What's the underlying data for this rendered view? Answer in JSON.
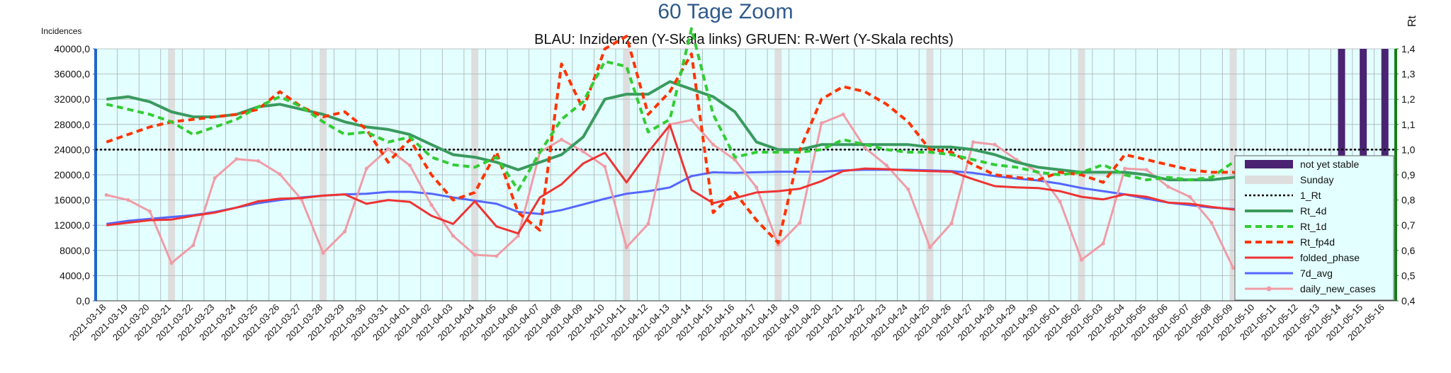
{
  "chart_data": {
    "type": "line",
    "title": "60 Tage Zoom",
    "subtitle": "BLAU: Inzidenzen (Y-Skala links)     GRUEN: R-Wert (Y-Skala rechts)",
    "ylabel_left": "Incidences",
    "ylabel_right": "Rt",
    "ylim_left": [
      0,
      40000
    ],
    "ylim_right": [
      0.4,
      1.4
    ],
    "yticks_left": [
      "0,0",
      "4000,0",
      "8000,0",
      "12000,0",
      "16000,0",
      "20000,0",
      "24000,0",
      "28000,0",
      "32000,0",
      "36000,0",
      "40000,0"
    ],
    "yticks_right": [
      "0,4",
      "0,5",
      "0,6",
      "0,7",
      "0,8",
      "0,9",
      "1,0",
      "1,1",
      "1,2",
      "1,3",
      "1,4"
    ],
    "grid": true,
    "legend_position": "bottom-right",
    "background_color": "#e3ffff",
    "x": [
      "2021-03-18",
      "2021-03-19",
      "2021-03-20",
      "2021-03-21",
      "2021-03-22",
      "2021-03-23",
      "2021-03-24",
      "2021-03-25",
      "2021-03-26",
      "2021-03-27",
      "2021-03-28",
      "2021-03-29",
      "2021-03-30",
      "2021-03-31",
      "2021-04-01",
      "2021-04-02",
      "2021-04-03",
      "2021-04-04",
      "2021-04-05",
      "2021-04-06",
      "2021-04-07",
      "2021-04-08",
      "2021-04-09",
      "2021-04-10",
      "2021-04-11",
      "2021-04-12",
      "2021-04-13",
      "2021-04-14",
      "2021-04-15",
      "2021-04-16",
      "2021-04-17",
      "2021-04-18",
      "2021-04-19",
      "2021-04-20",
      "2021-04-21",
      "2021-04-22",
      "2021-04-23",
      "2021-04-24",
      "2021-04-25",
      "2021-04-26",
      "2021-04-27",
      "2021-04-28",
      "2021-04-29",
      "2021-04-30",
      "2021-05-01",
      "2021-05-02",
      "2021-05-03",
      "2021-05-04",
      "2021-05-05",
      "2021-05-06",
      "2021-05-07",
      "2021-05-08",
      "2021-05-09",
      "2021-05-10",
      "2021-05-11",
      "2021-05-12",
      "2021-05-13",
      "2021-05-14",
      "2021-05-15",
      "2021-05-16"
    ],
    "sundays": [
      "2021-03-21",
      "2021-03-28",
      "2021-04-04",
      "2021-04-11",
      "2021-04-18",
      "2021-04-25",
      "2021-05-02",
      "2021-05-09"
    ],
    "not_yet_stable": [
      "2021-05-14",
      "2021-05-15",
      "2021-05-16"
    ],
    "series": [
      {
        "name": "not yet stable",
        "kind": "bars",
        "color": "#4b2373"
      },
      {
        "name": "Sunday",
        "kind": "bars",
        "color": "#dedede"
      },
      {
        "name": "1_Rt",
        "kind": "line",
        "axis": "right",
        "color": "#000000",
        "dash": "dotted",
        "constant": 1.0
      },
      {
        "name": "Rt_4d",
        "kind": "line",
        "axis": "right",
        "color": "#3a9a5e",
        "dash": "solid",
        "values": [
          1.2,
          1.21,
          1.19,
          1.15,
          1.13,
          1.13,
          1.14,
          1.17,
          1.18,
          1.16,
          1.14,
          1.11,
          1.09,
          1.08,
          1.06,
          1.02,
          0.98,
          0.97,
          0.95,
          0.92,
          0.95,
          0.98,
          1.05,
          1.2,
          1.22,
          1.22,
          1.27,
          1.24,
          1.21,
          1.15,
          1.03,
          1.0,
          1.0,
          1.02,
          1.02,
          1.02,
          1.02,
          1.02,
          1.01,
          1.01,
          1.0,
          0.98,
          0.95,
          0.93,
          0.92,
          0.91,
          0.91,
          0.91,
          0.9,
          0.88,
          0.88,
          0.88,
          0.89,
          0.9,
          0.91,
          0.89,
          0.85,
          0.77,
          0.69,
          0.71
        ]
      },
      {
        "name": "Rt_1d",
        "kind": "line",
        "axis": "right",
        "color": "#33cc33",
        "dash": "dashed",
        "values": [
          1.18,
          1.16,
          1.14,
          1.11,
          1.06,
          1.09,
          1.12,
          1.17,
          1.21,
          1.17,
          1.11,
          1.06,
          1.07,
          1.03,
          1.05,
          0.97,
          0.94,
          0.93,
          0.97,
          0.84,
          0.99,
          1.12,
          1.19,
          1.35,
          1.33,
          1.07,
          1.12,
          1.48,
          1.14,
          0.97,
          0.99,
          0.99,
          0.99,
          1.0,
          1.04,
          1.02,
          1.0,
          0.99,
          0.99,
          0.98,
          0.96,
          0.94,
          0.93,
          0.91,
          0.9,
          0.91,
          0.94,
          0.9,
          0.88,
          0.89,
          0.88,
          0.89,
          0.95,
          0.93,
          0.88,
          0.86,
          0.74,
          0.7,
          0.78,
          0.84
        ]
      },
      {
        "name": "Rt_fp4d",
        "kind": "line",
        "axis": "right",
        "color": "#ff3300",
        "dash": "dashed",
        "values": [
          1.03,
          1.06,
          1.09,
          1.11,
          1.12,
          1.13,
          1.14,
          1.16,
          1.23,
          1.17,
          1.13,
          1.15,
          1.08,
          0.95,
          1.04,
          0.9,
          0.8,
          0.83,
          0.99,
          0.75,
          0.68,
          1.34,
          1.16,
          1.4,
          1.45,
          1.14,
          1.23,
          1.38,
          0.75,
          0.83,
          0.72,
          0.63,
          1.0,
          1.2,
          1.25,
          1.23,
          1.18,
          1.11,
          1.0,
          0.99,
          0.94,
          0.9,
          0.89,
          0.88,
          0.91,
          0.9,
          0.87,
          0.98,
          0.96,
          0.94,
          0.92,
          0.91,
          0.91,
          0.89,
          0.9,
          0.88,
          0.85,
          0.63,
          0.64,
          0.76
        ]
      },
      {
        "name": "folded_phase",
        "kind": "line",
        "axis": "left",
        "color": "#ee3333",
        "dash": "solid",
        "values": [
          12000,
          12400,
          12800,
          12900,
          13500,
          14000,
          14800,
          15800,
          16200,
          16300,
          16700,
          16900,
          15400,
          16000,
          15700,
          13500,
          12200,
          15800,
          11800,
          10700,
          16400,
          18500,
          21800,
          23500,
          18800,
          23600,
          27900,
          17600,
          15500,
          16300,
          17200,
          17400,
          17800,
          19000,
          20600,
          21000,
          20900,
          20700,
          20600,
          20500,
          19300,
          18200,
          18000,
          17900,
          17400,
          16500,
          16100,
          16900,
          16500,
          15600,
          15400,
          14900,
          14500,
          14300,
          14100,
          13000,
          9800,
          7600,
          10200,
          10100
        ]
      },
      {
        "name": "7d_avg",
        "kind": "line",
        "axis": "left",
        "color": "#5566ff",
        "dash": "solid",
        "values": [
          12200,
          12700,
          13000,
          13300,
          13600,
          14100,
          14800,
          15500,
          16000,
          16400,
          16700,
          16900,
          17000,
          17300,
          17300,
          17000,
          16400,
          15900,
          15400,
          14100,
          13800,
          14400,
          15300,
          16200,
          17000,
          17400,
          18000,
          19800,
          20400,
          20300,
          20400,
          20500,
          20500,
          20500,
          20700,
          20800,
          20800,
          20800,
          20700,
          20600,
          20300,
          19800,
          19400,
          19100,
          18600,
          17900,
          17400,
          16900,
          16200,
          15600,
          15200,
          14800,
          14600,
          14400,
          14100,
          13500,
          12200,
          10800,
          10200,
          9700
        ]
      },
      {
        "name": "daily_new_cases",
        "kind": "line",
        "axis": "left",
        "color": "#f09ca6",
        "dash": "solid",
        "markers": true,
        "values": [
          16800,
          16000,
          14200,
          6000,
          8800,
          19500,
          22500,
          22200,
          20100,
          16100,
          7600,
          11000,
          21000,
          24100,
          21500,
          15200,
          10300,
          7300,
          7100,
          10300,
          23600,
          25600,
          23700,
          21300,
          8500,
          12200,
          28000,
          28700,
          24800,
          22400,
          18000,
          8900,
          12400,
          28200,
          29600,
          24300,
          21500,
          17700,
          8500,
          12300,
          25200,
          24800,
          22400,
          20400,
          15800,
          6500,
          9100,
          21000,
          20800,
          18100,
          16500,
          12400,
          5200,
          7600,
          16800,
          16400,
          10600,
          6200,
          8000,
          3500
        ]
      }
    ]
  }
}
